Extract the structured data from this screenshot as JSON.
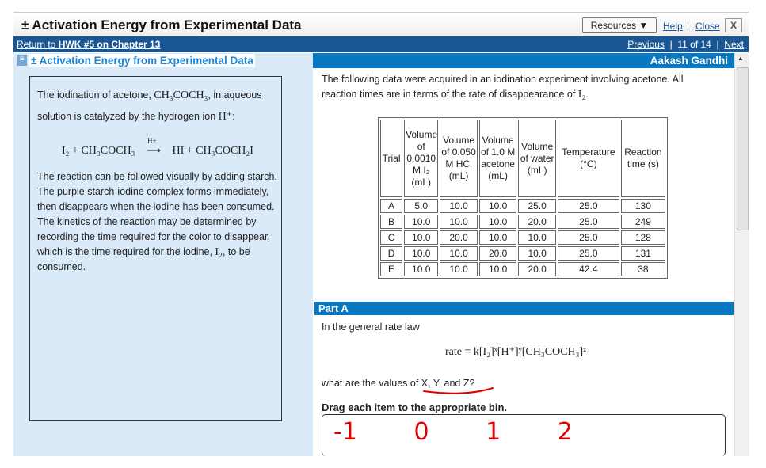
{
  "window": {
    "title": "± Activation Energy from Experimental Data",
    "resources": "Resources ▼",
    "help": "Help",
    "close": "Close",
    "x": "X"
  },
  "nav": {
    "return_prefix": "Return to ",
    "return_link": "HWK #5 on Chapter 13",
    "previous": "Previous",
    "position": "11 of 14",
    "next": "Next"
  },
  "header": {
    "title": "± Activation Energy from Experimental Data",
    "user": "Aakash Gandhi"
  },
  "intro": {
    "p1a": "The iodination of acetone, ",
    "p1m": "CH₃COCH₃",
    "p1b": ", in aqueous solution is catalyzed by the hydrogen ion ",
    "p1m2": "H⁺",
    ":": ":",
    "reaction": "I₂ + CH₃COCH₃",
    "catalyst": "H+",
    "arrow": "⟶",
    "products": "HI + CH₃COCH₂I",
    "p2": "The reaction can be followed visually by adding starch. The purple starch-iodine complex forms immediately, then disappears when the iodine has been consumed. The kinetics of the reaction may be determined by recording the time required for the color to disappear, which is the time required for the iodine, ",
    "p2m": "I₂",
    "p2b": ", to be consumed."
  },
  "main": {
    "intro": "The following data were acquired in an iodination experiment involving acetone. All reaction times are in terms of the rate of disappearance of ",
    "intro_m": "I₂",
    "intro_end": ".",
    "table": {
      "headers": [
        "Trial",
        "Volume of 0.0010 M I₂ (mL)",
        "Volume of 0.050 M HCl (mL)",
        "Volume of 1.0 M acetone (mL)",
        "Volume of water (mL)",
        "Temperature (°C)",
        "Reaction time (s)"
      ],
      "rows": [
        [
          "A",
          "5.0",
          "10.0",
          "10.0",
          "25.0",
          "25.0",
          "130"
        ],
        [
          "B",
          "10.0",
          "10.0",
          "10.0",
          "20.0",
          "25.0",
          "249"
        ],
        [
          "C",
          "10.0",
          "20.0",
          "10.0",
          "10.0",
          "25.0",
          "128"
        ],
        [
          "D",
          "10.0",
          "10.0",
          "20.0",
          "10.0",
          "25.0",
          "131"
        ],
        [
          "E",
          "10.0",
          "10.0",
          "10.0",
          "20.0",
          "42.4",
          "38"
        ]
      ]
    },
    "part_label": "Part A",
    "rate_intro": "In the general rate law",
    "rate_law": "rate = k[I₂]ˣ[H⁺]ʸ[CH₃COCH₃]ᶻ",
    "question": "what are the values of X, Y, and Z?",
    "instruction": "Drag each item to the appropriate bin.",
    "annotation": "-1 0 1 2"
  },
  "colors": {
    "nav": "#1a5694",
    "accent": "#0a78c0",
    "panel": "#dbeaf8",
    "annotation": "#e00000"
  }
}
